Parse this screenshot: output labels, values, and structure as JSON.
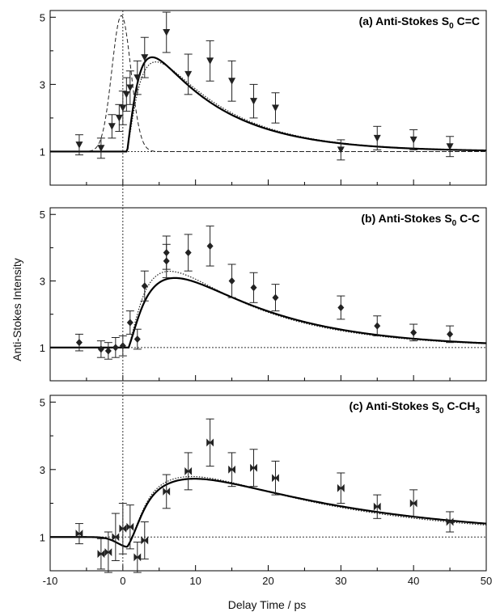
{
  "chart_data": {
    "type": "scatter",
    "xlabel": "Delay Time  / ps",
    "ylabel": "Anti-Stokes Intensity",
    "xlim": [
      -10,
      50
    ],
    "x_ticks": [
      -10,
      0,
      10,
      20,
      30,
      40,
      50
    ],
    "ylim": [
      0,
      5.2
    ],
    "y_ticks": [
      1,
      3,
      5
    ],
    "grid": false,
    "reference_lines": {
      "y": 1,
      "x": 0,
      "style": "dotted"
    },
    "panels": [
      {
        "title_main": "(a) Anti-Stokes S",
        "title_sub": "0",
        "title_rest": " C=C",
        "marker": "triangle-down",
        "points": [
          {
            "x": -6,
            "y": 1.2,
            "err": 0.3
          },
          {
            "x": -3,
            "y": 1.1,
            "err": 0.3
          },
          {
            "x": -1.5,
            "y": 1.75,
            "err": 0.35
          },
          {
            "x": -0.5,
            "y": 2.0,
            "err": 0.4
          },
          {
            "x": 0,
            "y": 2.3,
            "err": 0.5
          },
          {
            "x": 0.5,
            "y": 2.7,
            "err": 0.5
          },
          {
            "x": 1,
            "y": 2.9,
            "err": 0.5
          },
          {
            "x": 2,
            "y": 3.2,
            "err": 0.5
          },
          {
            "x": 3,
            "y": 3.8,
            "err": 0.6
          },
          {
            "x": 6,
            "y": 4.55,
            "err": 0.6
          },
          {
            "x": 9,
            "y": 3.3,
            "err": 0.6
          },
          {
            "x": 12,
            "y": 3.7,
            "err": 0.6
          },
          {
            "x": 15,
            "y": 3.1,
            "err": 0.6
          },
          {
            "x": 18,
            "y": 2.5,
            "err": 0.5
          },
          {
            "x": 21,
            "y": 2.3,
            "err": 0.45
          },
          {
            "x": 30,
            "y": 1.05,
            "err": 0.3
          },
          {
            "x": 35,
            "y": 1.4,
            "err": 0.35
          },
          {
            "x": 40,
            "y": 1.35,
            "err": 0.3
          },
          {
            "x": 45,
            "y": 1.15,
            "err": 0.3
          }
        ],
        "fit": {
          "t0": 0.6,
          "sigma": 1.3,
          "tau1": 1.7,
          "tau2": 10.0,
          "amp": 4.6
        },
        "fit_alt": {
          "t0": 0.6,
          "sigma": 1.3,
          "tau1": 2.3,
          "tau2": 10.0,
          "amp": 4.85
        },
        "pulse": {
          "center": -0.2,
          "sigma": 1.3,
          "peak": 5.05
        }
      },
      {
        "title_main": "(b) Anti-Stokes S",
        "title_sub": "0",
        "title_rest": " C-C",
        "marker": "diamond",
        "points": [
          {
            "x": -6,
            "y": 1.15,
            "err": 0.25
          },
          {
            "x": -3,
            "y": 0.95,
            "err": 0.25
          },
          {
            "x": -2,
            "y": 0.9,
            "err": 0.25
          },
          {
            "x": -1,
            "y": 1.0,
            "err": 0.3
          },
          {
            "x": 0,
            "y": 1.05,
            "err": 0.3
          },
          {
            "x": 1,
            "y": 1.75,
            "err": 0.35
          },
          {
            "x": 2,
            "y": 1.25,
            "err": 0.3
          },
          {
            "x": 3,
            "y": 2.85,
            "err": 0.45
          },
          {
            "x": 6,
            "y": 3.85,
            "err": 0.5
          },
          {
            "x": 6,
            "y": 3.6,
            "err": 0.5
          },
          {
            "x": 9,
            "y": 3.85,
            "err": 0.55
          },
          {
            "x": 12,
            "y": 4.05,
            "err": 0.6
          },
          {
            "x": 15,
            "y": 3.0,
            "err": 0.5
          },
          {
            "x": 18,
            "y": 2.8,
            "err": 0.45
          },
          {
            "x": 21,
            "y": 2.5,
            "err": 0.4
          },
          {
            "x": 30,
            "y": 2.2,
            "err": 0.35
          },
          {
            "x": 35,
            "y": 1.65,
            "err": 0.3
          },
          {
            "x": 40,
            "y": 1.45,
            "err": 0.25
          },
          {
            "x": 45,
            "y": 1.4,
            "err": 0.25
          }
        ],
        "fit": {
          "t0": 0.8,
          "sigma": 1.3,
          "tau1": 4.5,
          "tau2": 14.0,
          "amp": 4.35
        },
        "fit_alt": {
          "t0": 0.8,
          "sigma": 1.3,
          "tau1": 3.6,
          "tau2": 13.5,
          "amp": 4.4
        }
      },
      {
        "title_main": "(c) Anti-Stokes S",
        "title_sub": "0",
        "title_rest": " C-CH",
        "title_sub2": "3",
        "marker": "bowtie",
        "points": [
          {
            "x": -6,
            "y": 1.1,
            "err": 0.3
          },
          {
            "x": -3,
            "y": 0.5,
            "err": 0.45
          },
          {
            "x": -2,
            "y": 0.55,
            "err": 0.6
          },
          {
            "x": -1,
            "y": 1.0,
            "err": 0.7
          },
          {
            "x": 0,
            "y": 1.25,
            "err": 0.75
          },
          {
            "x": 1,
            "y": 1.3,
            "err": 0.65
          },
          {
            "x": 2,
            "y": 0.4,
            "err": 0.45
          },
          {
            "x": 3,
            "y": 0.9,
            "err": 0.55
          },
          {
            "x": 6,
            "y": 2.35,
            "err": 0.5
          },
          {
            "x": 9,
            "y": 2.95,
            "err": 0.55
          },
          {
            "x": 12,
            "y": 3.8,
            "err": 0.7
          },
          {
            "x": 15,
            "y": 3.0,
            "err": 0.5
          },
          {
            "x": 18,
            "y": 3.05,
            "err": 0.55
          },
          {
            "x": 21,
            "y": 2.75,
            "err": 0.5
          },
          {
            "x": 30,
            "y": 2.45,
            "err": 0.45
          },
          {
            "x": 35,
            "y": 1.9,
            "err": 0.35
          },
          {
            "x": 40,
            "y": 2.0,
            "err": 0.4
          },
          {
            "x": 45,
            "y": 1.45,
            "err": 0.3
          }
        ],
        "fit": {
          "t0": 0.6,
          "sigma": 1.3,
          "tau1": 5.5,
          "tau2": 24.0,
          "amp": 3.12,
          "dip": -0.3
        },
        "fit_alt": {
          "t0": 0.6,
          "sigma": 1.3,
          "tau1": 5.5,
          "tau2": 22.0,
          "amp": 3.35,
          "dip": -0.3
        }
      }
    ]
  }
}
